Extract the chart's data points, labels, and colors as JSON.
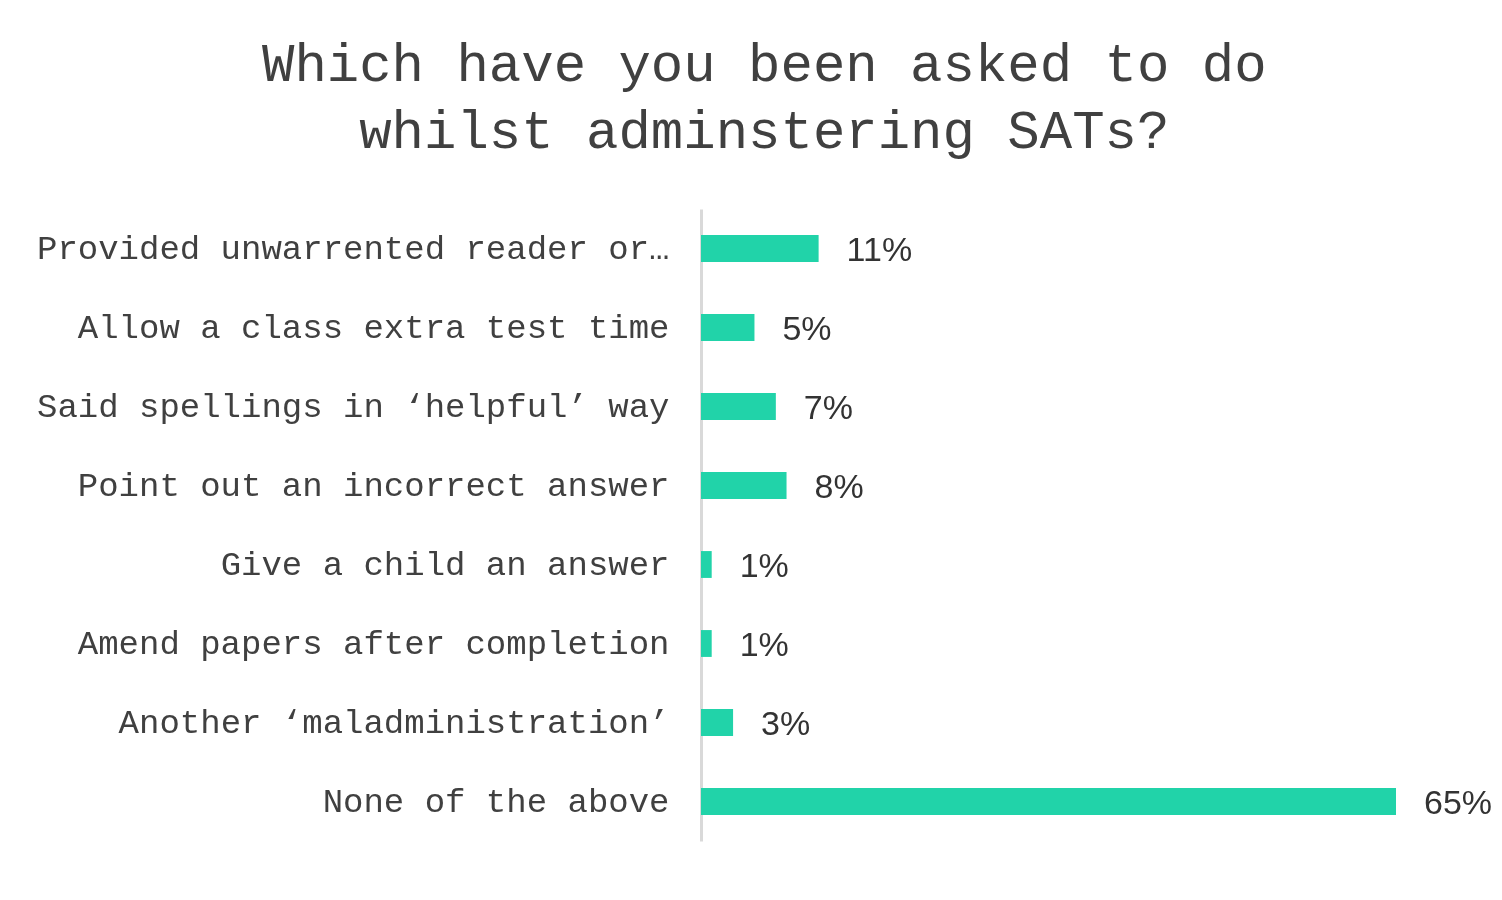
{
  "chart_data": {
    "type": "bar",
    "orientation": "horizontal",
    "title": "Which have you been asked to do whilst adminstering SATs?",
    "categories": [
      "Provided unwarrented reader or…",
      "Allow a class extra test time",
      "Said spellings in ‘helpful’ way",
      "Point out an incorrect answer",
      "Give a child an answer",
      "Amend papers after completion",
      "Another ‘maladministration’",
      "None of the above"
    ],
    "values": [
      11,
      5,
      7,
      8,
      1,
      1,
      3,
      65
    ],
    "value_labels": [
      "11%",
      "5%",
      "7%",
      "8%",
      "1%",
      "1%",
      "3%",
      "65%"
    ],
    "color": "#21d3a9"
  }
}
